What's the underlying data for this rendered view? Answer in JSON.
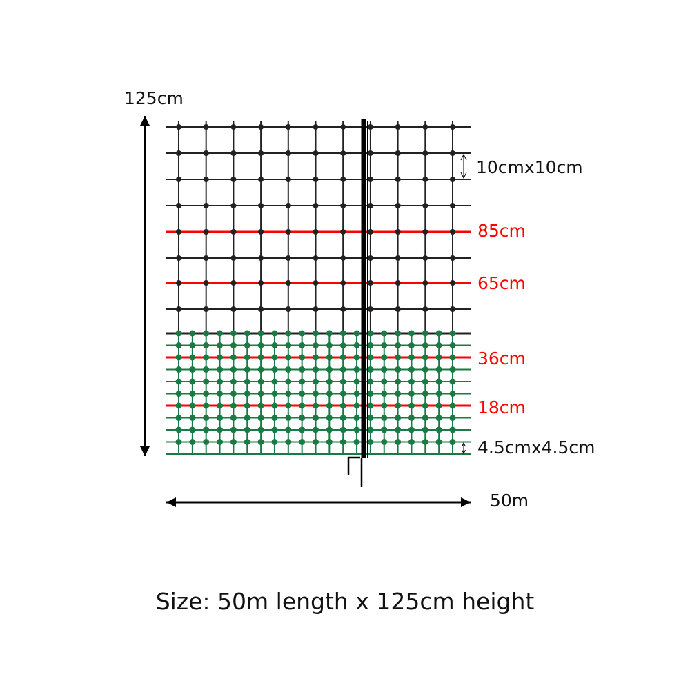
{
  "labels": {
    "height_total": "125cm",
    "large_mesh": "10cmx10cm",
    "wire_85": "85cm",
    "wire_65": "65cm",
    "wire_36": "36cm",
    "wire_18": "18cm",
    "small_mesh": "4.5cmx4.5cm",
    "length": "50m"
  },
  "caption": "Size: 50m length x 125cm height",
  "colors": {
    "upper_mesh": "#222222",
    "lower_mesh": "#1a7a45",
    "electric_wire": "#ff0000",
    "post": "#000000"
  }
}
